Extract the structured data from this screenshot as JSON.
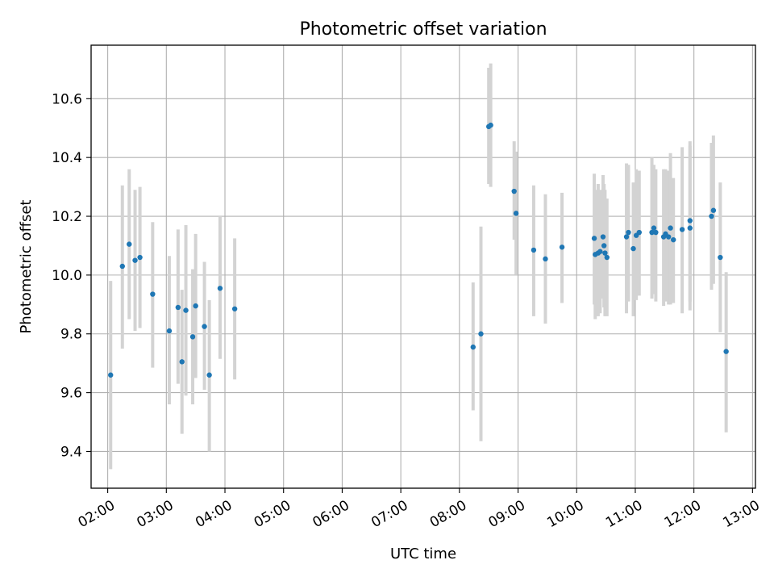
{
  "chart_data": {
    "type": "scatter",
    "title": "Photometric offset variation",
    "xlabel": "UTC time",
    "ylabel": "Photometric offset",
    "xlim": [
      "01:43",
      "13:03"
    ],
    "ylim": [
      9.275,
      10.782
    ],
    "grid": true,
    "x_ticks": [
      "02:00",
      "03:00",
      "04:00",
      "05:00",
      "06:00",
      "07:00",
      "08:00",
      "09:00",
      "10:00",
      "11:00",
      "12:00",
      "13:00"
    ],
    "y_ticks": [
      "9.4",
      "9.6",
      "9.8",
      "10.0",
      "10.2",
      "10.4",
      "10.6"
    ],
    "colors": {
      "marker": "#1f77b4",
      "errorbar": "#d3d3d3",
      "grid": "#b0b0b0"
    },
    "series": [
      {
        "points": [
          {
            "x": "02:03",
            "y": 9.66,
            "ylo": 9.34,
            "yhi": 9.98
          },
          {
            "x": "02:15",
            "y": 10.03,
            "ylo": 9.75,
            "yhi": 10.305
          },
          {
            "x": "02:22",
            "y": 10.105,
            "ylo": 9.85,
            "yhi": 10.36
          },
          {
            "x": "02:28",
            "y": 10.05,
            "ylo": 9.81,
            "yhi": 10.29
          },
          {
            "x": "02:33",
            "y": 10.06,
            "ylo": 9.82,
            "yhi": 10.3
          },
          {
            "x": "02:46",
            "y": 9.935,
            "ylo": 9.685,
            "yhi": 10.18
          },
          {
            "x": "03:03",
            "y": 9.81,
            "ylo": 9.56,
            "yhi": 10.065
          },
          {
            "x": "03:12",
            "y": 9.89,
            "ylo": 9.63,
            "yhi": 10.155
          },
          {
            "x": "03:16",
            "y": 9.705,
            "ylo": 9.46,
            "yhi": 9.95
          },
          {
            "x": "03:20",
            "y": 9.88,
            "ylo": 9.59,
            "yhi": 10.17
          },
          {
            "x": "03:27",
            "y": 9.79,
            "ylo": 9.56,
            "yhi": 10.02
          },
          {
            "x": "03:30",
            "y": 9.895,
            "ylo": 9.65,
            "yhi": 10.14
          },
          {
            "x": "03:39",
            "y": 9.825,
            "ylo": 9.61,
            "yhi": 10.045
          },
          {
            "x": "03:44",
            "y": 9.66,
            "ylo": 9.4,
            "yhi": 9.915
          },
          {
            "x": "03:55",
            "y": 9.955,
            "ylo": 9.715,
            "yhi": 10.2
          },
          {
            "x": "04:10",
            "y": 9.885,
            "ylo": 9.645,
            "yhi": 10.125
          },
          {
            "x": "08:14",
            "y": 9.755,
            "ylo": 9.54,
            "yhi": 9.975
          },
          {
            "x": "08:22",
            "y": 9.8,
            "ylo": 9.435,
            "yhi": 10.165
          },
          {
            "x": "08:30",
            "y": 10.505,
            "ylo": 10.31,
            "yhi": 10.705
          },
          {
            "x": "08:32",
            "y": 10.51,
            "ylo": 10.3,
            "yhi": 10.72
          },
          {
            "x": "08:56",
            "y": 10.285,
            "ylo": 10.12,
            "yhi": 10.455
          },
          {
            "x": "08:58",
            "y": 10.21,
            "ylo": 10.0,
            "yhi": 10.42
          },
          {
            "x": "09:16",
            "y": 10.085,
            "ylo": 9.86,
            "yhi": 10.305
          },
          {
            "x": "09:28",
            "y": 10.055,
            "ylo": 9.835,
            "yhi": 10.275
          },
          {
            "x": "09:45",
            "y": 10.095,
            "ylo": 9.905,
            "yhi": 10.28
          },
          {
            "x": "10:18",
            "y": 10.125,
            "ylo": 9.9,
            "yhi": 10.345
          },
          {
            "x": "10:19",
            "y": 10.07,
            "ylo": 9.85,
            "yhi": 10.29
          },
          {
            "x": "10:22",
            "y": 10.075,
            "ylo": 9.86,
            "yhi": 10.31
          },
          {
            "x": "10:24",
            "y": 10.08,
            "ylo": 9.87,
            "yhi": 10.29
          },
          {
            "x": "10:27",
            "y": 10.13,
            "ylo": 9.92,
            "yhi": 10.34
          },
          {
            "x": "10:28",
            "y": 10.1,
            "ylo": 9.89,
            "yhi": 10.31
          },
          {
            "x": "10:29",
            "y": 10.075,
            "ylo": 9.86,
            "yhi": 10.29
          },
          {
            "x": "10:31",
            "y": 10.06,
            "ylo": 9.86,
            "yhi": 10.26
          },
          {
            "x": "10:51",
            "y": 10.13,
            "ylo": 9.87,
            "yhi": 10.38
          },
          {
            "x": "10:53",
            "y": 10.145,
            "ylo": 9.91,
            "yhi": 10.375
          },
          {
            "x": "10:58",
            "y": 10.09,
            "ylo": 9.86,
            "yhi": 10.315
          },
          {
            "x": "11:01",
            "y": 10.135,
            "ylo": 9.915,
            "yhi": 10.36
          },
          {
            "x": "11:04",
            "y": 10.145,
            "ylo": 9.93,
            "yhi": 10.355
          },
          {
            "x": "11:17",
            "y": 10.145,
            "ylo": 9.92,
            "yhi": 10.4
          },
          {
            "x": "11:19",
            "y": 10.16,
            "ylo": 9.935,
            "yhi": 10.375
          },
          {
            "x": "11:21",
            "y": 10.145,
            "ylo": 9.91,
            "yhi": 10.36
          },
          {
            "x": "11:29",
            "y": 10.13,
            "ylo": 9.895,
            "yhi": 10.36
          },
          {
            "x": "11:31",
            "y": 10.14,
            "ylo": 9.91,
            "yhi": 10.36
          },
          {
            "x": "11:34",
            "y": 10.13,
            "ylo": 9.9,
            "yhi": 10.355
          },
          {
            "x": "11:36",
            "y": 10.16,
            "ylo": 9.9,
            "yhi": 10.415
          },
          {
            "x": "11:39",
            "y": 10.12,
            "ylo": 9.905,
            "yhi": 10.33
          },
          {
            "x": "11:48",
            "y": 10.155,
            "ylo": 9.87,
            "yhi": 10.435
          },
          {
            "x": "11:56",
            "y": 10.185,
            "ylo": 9.91,
            "yhi": 10.455
          },
          {
            "x": "11:56",
            "y": 10.16,
            "ylo": 9.88,
            "yhi": 10.44
          },
          {
            "x": "12:18",
            "y": 10.2,
            "ylo": 9.95,
            "yhi": 10.45
          },
          {
            "x": "12:20",
            "y": 10.22,
            "ylo": 9.97,
            "yhi": 10.475
          },
          {
            "x": "12:27",
            "y": 10.06,
            "ylo": 9.805,
            "yhi": 10.315
          },
          {
            "x": "12:33",
            "y": 9.74,
            "ylo": 9.465,
            "yhi": 10.01
          }
        ]
      }
    ]
  }
}
